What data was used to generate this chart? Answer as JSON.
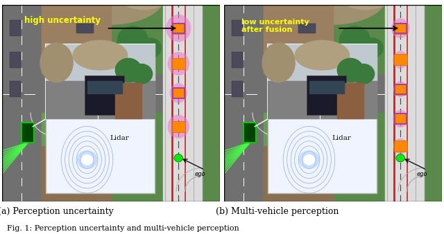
{
  "fig_width": 6.4,
  "fig_height": 3.38,
  "dpi": 100,
  "bg_color": "#ffffff",
  "caption_a": "(a) Perception uncertainty",
  "caption_b": "(b) Multi-vehicle perception",
  "fig_caption": "Fig. 1: Perception uncertainty and multi-vehicle perception",
  "label_high": "high uncertainty",
  "label_low": "low uncertainty\nafter fusion",
  "label_lidar": "Lidar",
  "label_ego": "ego",
  "yellow": "#ffff00",
  "pink": "#ee77cc",
  "orange": "#ff8800",
  "purple": "#8844bb",
  "green": "#00ee00",
  "road_gray": "#909090",
  "asphalt": "#7a7a7a",
  "white_strip": "#e8e8e8",
  "red_line": "#cc2222",
  "dark_gray": "#555555",
  "grass_green": "#5a8a4a",
  "brown": "#8b6040",
  "strip_bg": "#dcdcdc"
}
